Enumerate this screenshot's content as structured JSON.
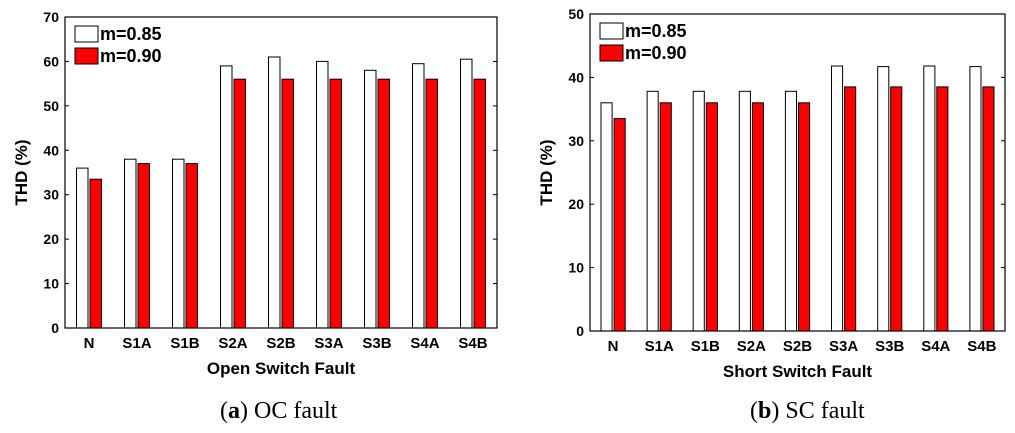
{
  "chart_data": [
    {
      "type": "bar",
      "title": "",
      "xlabel": "Open Switch Fault",
      "ylabel": "THD (%)",
      "ylim": [
        0,
        70
      ],
      "yticks": [
        0,
        10,
        20,
        30,
        40,
        50,
        60,
        70
      ],
      "categories": [
        "N",
        "S1A",
        "S1B",
        "S2A",
        "S2B",
        "S3A",
        "S3B",
        "S4A",
        "S4B"
      ],
      "series": [
        {
          "name": "m=0.85",
          "color": "#ffffff",
          "values": [
            36,
            38,
            38,
            59,
            61,
            60,
            58,
            59.5,
            60.5
          ]
        },
        {
          "name": "m=0.90",
          "color": "#ff0000",
          "values": [
            33.5,
            37,
            37,
            56,
            56,
            56,
            56,
            56,
            56
          ]
        }
      ],
      "grid": false,
      "legend": "top-left",
      "caption_label": "a",
      "caption_text": "OC fault"
    },
    {
      "type": "bar",
      "title": "",
      "xlabel": "Short Switch Fault",
      "ylabel": "THD (%)",
      "ylim": [
        0,
        50
      ],
      "yticks": [
        0,
        10,
        20,
        30,
        40,
        50
      ],
      "categories": [
        "N",
        "S1A",
        "S1B",
        "S2A",
        "S2B",
        "S3A",
        "S3B",
        "S4A",
        "S4B"
      ],
      "series": [
        {
          "name": "m=0.85",
          "color": "#ffffff",
          "values": [
            36,
            37.8,
            37.8,
            37.8,
            37.8,
            41.8,
            41.7,
            41.8,
            41.7
          ]
        },
        {
          "name": "m=0.90",
          "color": "#ff0000",
          "values": [
            33.5,
            36,
            36,
            36,
            36,
            38.5,
            38.5,
            38.5,
            38.5
          ]
        }
      ],
      "grid": false,
      "legend": "top-left",
      "caption_label": "b",
      "caption_text": "SC fault"
    }
  ]
}
